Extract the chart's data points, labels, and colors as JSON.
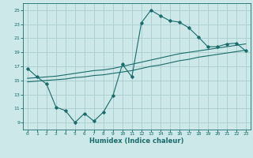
{
  "title": "",
  "xlabel": "Humidex (Indice chaleur)",
  "bg_color": "#cce8e8",
  "grid_color": "#aacccc",
  "line_color": "#1a6b6b",
  "xlim": [
    -0.5,
    23.5
  ],
  "ylim": [
    8,
    26
  ],
  "yticks": [
    9,
    11,
    13,
    15,
    17,
    19,
    21,
    23,
    25
  ],
  "xticks": [
    0,
    1,
    2,
    3,
    4,
    5,
    6,
    7,
    8,
    9,
    10,
    11,
    12,
    13,
    14,
    15,
    16,
    17,
    18,
    19,
    20,
    21,
    22,
    23
  ],
  "series1_x": [
    0,
    1,
    2,
    3,
    4,
    5,
    6,
    7,
    8,
    9,
    10,
    11,
    12,
    13,
    14,
    15,
    16,
    17,
    18,
    19,
    20,
    21,
    22,
    23
  ],
  "series1_y": [
    16.7,
    15.5,
    14.5,
    11.2,
    10.7,
    9.0,
    10.3,
    9.2,
    10.5,
    12.8,
    17.3,
    15.5,
    23.2,
    25.0,
    24.2,
    23.5,
    23.3,
    22.5,
    21.2,
    19.8,
    19.8,
    20.2,
    20.3,
    19.2
  ],
  "series2_x": [
    0,
    1,
    2,
    3,
    4,
    5,
    6,
    7,
    8,
    9,
    10,
    11,
    12,
    13,
    14,
    15,
    16,
    17,
    18,
    19,
    20,
    21,
    22,
    23
  ],
  "series2_y": [
    15.3,
    15.4,
    15.5,
    15.6,
    15.8,
    16.0,
    16.2,
    16.4,
    16.5,
    16.7,
    17.0,
    17.3,
    17.6,
    17.9,
    18.2,
    18.5,
    18.8,
    19.0,
    19.2,
    19.4,
    19.6,
    19.8,
    20.0,
    20.2
  ],
  "series3_x": [
    0,
    1,
    2,
    3,
    4,
    5,
    6,
    7,
    8,
    9,
    10,
    11,
    12,
    13,
    14,
    15,
    16,
    17,
    18,
    19,
    20,
    21,
    22,
    23
  ],
  "series3_y": [
    14.8,
    14.9,
    15.0,
    15.1,
    15.2,
    15.4,
    15.5,
    15.7,
    15.8,
    16.0,
    16.2,
    16.4,
    16.7,
    17.0,
    17.2,
    17.5,
    17.8,
    18.0,
    18.3,
    18.5,
    18.7,
    18.9,
    19.1,
    19.3
  ]
}
